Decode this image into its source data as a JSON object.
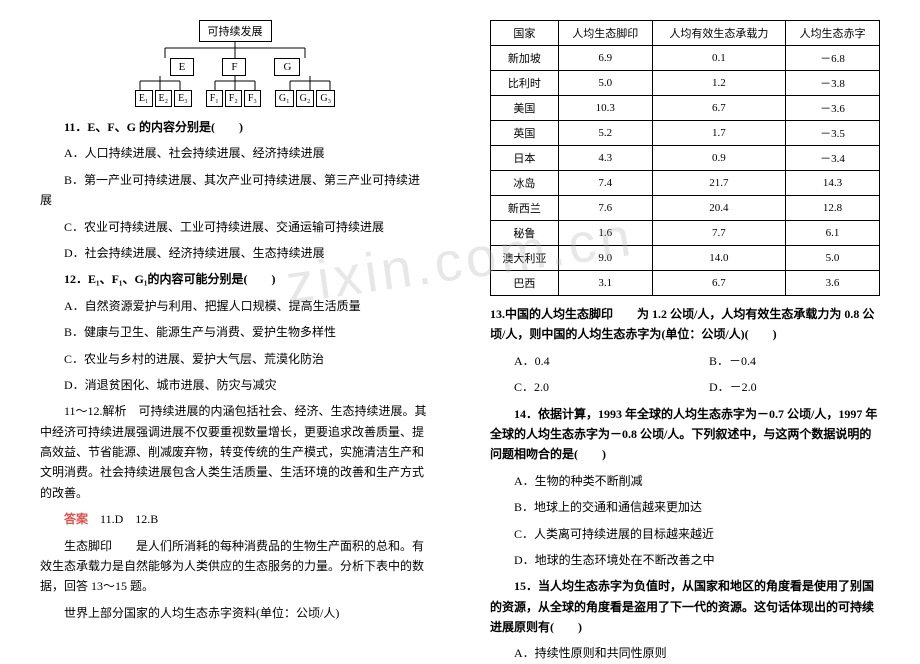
{
  "watermark": "zixin.com.cn",
  "diagram": {
    "root": "可持续发展",
    "mids": [
      "E",
      "F",
      "G"
    ],
    "leaves": [
      [
        "E₁",
        "E₂",
        "E₃"
      ],
      [
        "F₁",
        "F₂",
        "F₃"
      ],
      [
        "G₁",
        "G₂",
        "G₃"
      ]
    ]
  },
  "q11": {
    "stem": "11．E、F、G 的内容分别是(　　)",
    "A": "A．人口持续进展、社会持续进展、经济持续进展",
    "B": "B．第一产业可持续进展、其次产业可持续进展、第三产业可持续进展",
    "C": "C．农业可持续进展、工业可持续进展、交通运输可持续进展",
    "D": "D．社会持续进展、经济持续进展、生态持续进展"
  },
  "q12": {
    "stem": "12．E₁、F₁、G₁的内容可能分别是(　　)",
    "A": "A．自然资源爱护与利用、把握人口规模、提高生活质量",
    "B": "B．健康与卫生、能源生产与消费、爱护生物多样性",
    "C": "C．农业与乡村的进展、爱护大气层、荒漠化防治",
    "D": "D．消退贫困化、城市进展、防灾与减灾"
  },
  "analysis1112": "11～12.解析　可持续进展的内涵包括社会、经济、生态持续进展。其中经济可持续进展强调进展不仅要重视数量增长，更要追求改善质量、提高效益、节省能源、削减废弃物，转变传统的生产模式，实施清洁生产和文明消费。社会持续进展包含人类生活质量、生活环境的改善和生产方式的改善。",
  "answer1112": {
    "label": "答案",
    "text": "　11.D　12.B"
  },
  "footprint_intro": "生态脚印　　是人们所消耗的每种消费品的生物生产面积的总和。有效生态承载力是自然能够为人类供应的生态服务的力量。分析下表中的数据，回答 13～15 题。",
  "table_title": "世界上部分国家的人均生态赤字资料(单位：公顷/人)",
  "table": {
    "columns": [
      "国家",
      "人均生态脚印",
      "人均有效生态承载力",
      "人均生态赤字"
    ],
    "rows": [
      [
        "新加坡",
        "6.9",
        "0.1",
        "－6.8"
      ],
      [
        "比利时",
        "5.0",
        "1.2",
        "－3.8"
      ],
      [
        "美国",
        "10.3",
        "6.7",
        "－3.6"
      ],
      [
        "英国",
        "5.2",
        "1.7",
        "－3.5"
      ],
      [
        "日本",
        "4.3",
        "0.9",
        "－3.4"
      ],
      [
        "冰岛",
        "7.4",
        "21.7",
        "14.3"
      ],
      [
        "新西兰",
        "7.6",
        "20.4",
        "12.8"
      ],
      [
        "秘鲁",
        "1.6",
        "7.7",
        "6.1"
      ],
      [
        "澳大利亚",
        "9.0",
        "14.0",
        "5.0"
      ],
      [
        "巴西",
        "3.1",
        "6.7",
        "3.6"
      ]
    ]
  },
  "q13": {
    "stem": "13.中国的人均生态脚印　　为 1.2 公顷/人，人均有效生态承载力为 0.8 公顷/人，则中国的人均生态赤字为(单位：公顷/人)(　　)",
    "A": "A．0.4",
    "B": "B．－0.4",
    "C": "C．2.0",
    "D": "D．－2.0"
  },
  "q14": {
    "stem": "14．依据计算，1993 年全球的人均生态赤字为－0.7 公顷/人，1997 年全球的人均生态赤字为－0.8 公顷/人。下列叙述中，与这两个数据说明的问题相吻合的是(　　)",
    "A": "A．生物的种类不断削减",
    "B": "B．地球上的交通和通信越来更加达",
    "C": "C．人类离可持续进展的目标越来越近",
    "D": "D．地球的生态环境处在不断改善之中"
  },
  "q15": {
    "stem": "15．当人均生态赤字为负值时，从国家和地区的角度看是使用了别国的资源，从全球的角度看是盗用了下一代的资源。这句话体现出的可持续进展原则有(　　)",
    "A": "A．持续性原则和共同性原则"
  }
}
